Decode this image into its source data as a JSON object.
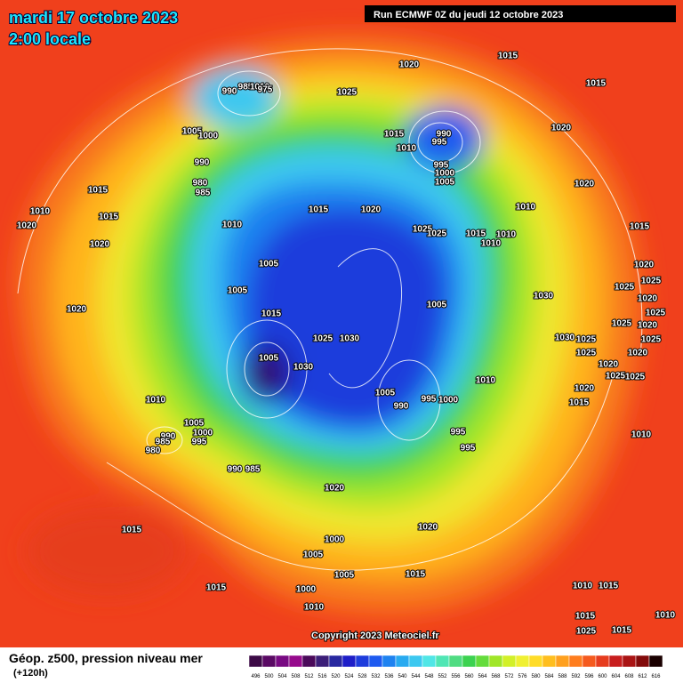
{
  "header": {
    "date": "mardi 17 octobre 2023",
    "time": "2:00 locale",
    "run": "Run ECMWF 0Z du jeudi 12 octobre 2023"
  },
  "footer": {
    "title": "Géop. z500, pression niveau mer",
    "lead": "(+120h)",
    "copyright": "Copyright 2023 Meteociel.fr"
  },
  "legend": {
    "levels": [
      496,
      500,
      504,
      508,
      512,
      516,
      520,
      524,
      528,
      532,
      536,
      540,
      544,
      548,
      552,
      556,
      560,
      564,
      568,
      572,
      576,
      580,
      584,
      588,
      592,
      596,
      600,
      604,
      608,
      612,
      616
    ],
    "colors": [
      "#3c0a46",
      "#5a0a64",
      "#780a82",
      "#960a8c",
      "#4b0a5a",
      "#3c1e78",
      "#2828a0",
      "#1e1ec8",
      "#1e3cdc",
      "#1e5af0",
      "#1e82f0",
      "#28aaf0",
      "#3cc8f0",
      "#50e6e6",
      "#50e6b4",
      "#50dc82",
      "#3cd250",
      "#64dc3c",
      "#a0e628",
      "#d2f028",
      "#f0f032",
      "#ffdc28",
      "#ffbe1e",
      "#ffa01e",
      "#ff7d1e",
      "#f55a1e",
      "#e63c1e",
      "#c81e1e",
      "#aa1414",
      "#820a0a",
      "#1a0000"
    ]
  },
  "isobar_labels": [
    1020,
    1015,
    1015,
    990,
    985,
    1010,
    975,
    1025,
    1005,
    1000,
    1015,
    990,
    995,
    1010,
    1020,
    990,
    995,
    1000,
    1005,
    980,
    985,
    1015,
    1020,
    1010,
    1015,
    1015,
    1020,
    1010,
    1020,
    1010,
    1025,
    1025,
    1015,
    1010,
    1015,
    1010,
    1020,
    1005,
    1020,
    1025,
    1005,
    1030,
    1025,
    1020,
    1015,
    1005,
    1025,
    1020,
    1025,
    1020,
    1030,
    1025,
    1025,
    1030,
    1025,
    1005,
    1030,
    1025,
    1020,
    1020,
    1025,
    1025,
    1010,
    1020,
    1005,
    995,
    1000,
    990,
    1010,
    1015,
    1005,
    990,
    1000,
    995,
    985,
    980,
    995,
    1010,
    995,
    990,
    985,
    1020,
    1020,
    1015,
    1000,
    1005,
    1005,
    1015,
    1000,
    1015,
    1010,
    1015,
    1010,
    1015,
    1010,
    1025,
    1015
  ]
}
